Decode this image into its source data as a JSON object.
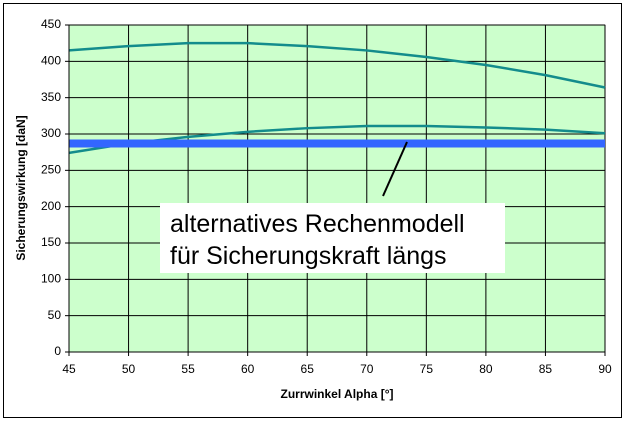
{
  "chart_data": {
    "type": "line",
    "x": [
      45,
      50,
      55,
      60,
      65,
      70,
      75,
      80,
      85,
      90
    ],
    "series": [
      {
        "color": "#138c8c",
        "values": [
          415,
          421,
          425,
          425,
          421,
          415,
          406,
          395,
          381,
          364
        ]
      },
      {
        "color": "#138c8c",
        "values": [
          274,
          287,
          296,
          303,
          308,
          311,
          311,
          309,
          306,
          301
        ]
      }
    ],
    "hline": {
      "value": 287,
      "color": "#3366ff"
    },
    "xlim": [
      45,
      90
    ],
    "xticks": [
      45,
      50,
      55,
      60,
      65,
      70,
      75,
      80,
      85,
      90
    ],
    "ylim": [
      0,
      450
    ],
    "yticks": [
      0,
      50,
      100,
      150,
      200,
      250,
      300,
      350,
      400,
      450
    ],
    "grid": true,
    "plot_background": "#ccffcc",
    "xlabel": "Zurrwinkel Alpha [°]",
    "ylabel": "Sicherungswirkung [daN]",
    "annotation": [
      "alternatives Rechenmodell",
      "für Sicherungskraft längs"
    ]
  }
}
